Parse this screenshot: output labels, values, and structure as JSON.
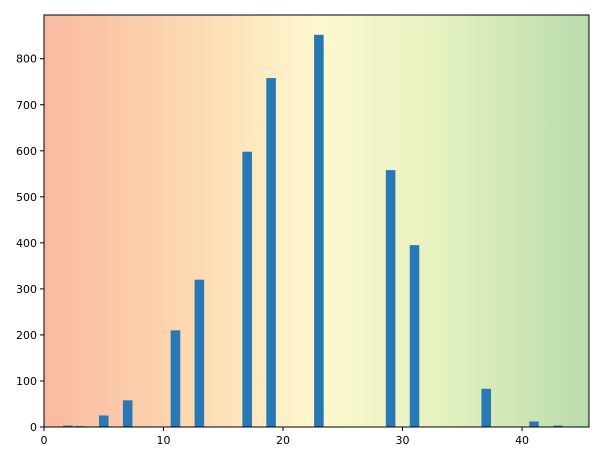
{
  "chart_data": {
    "type": "bar",
    "title": "",
    "xlabel": "",
    "ylabel": "",
    "x": [
      2,
      3,
      5,
      7,
      11,
      13,
      17,
      19,
      23,
      29,
      31,
      37,
      41,
      43
    ],
    "values": [
      3,
      2,
      25,
      58,
      210,
      320,
      598,
      758,
      852,
      558,
      395,
      83,
      12,
      3
    ],
    "bar_width": 0.8,
    "xlim": [
      0,
      45.6
    ],
    "ylim": [
      0,
      895
    ],
    "xticks": [
      0,
      10,
      20,
      30,
      40
    ],
    "xtick_labels": [
      "0",
      "10",
      "20",
      "30",
      "40"
    ],
    "yticks": [
      0,
      100,
      200,
      300,
      400,
      500,
      600,
      700,
      800
    ],
    "ytick_labels": [
      "0",
      "100",
      "200",
      "300",
      "400",
      "500",
      "600",
      "700",
      "800"
    ],
    "grid": false,
    "legend": "none",
    "bar_color": "#2878b5",
    "background_gradient": [
      "#f9b9a1",
      "#fdd9b0",
      "#fef8cf",
      "#e6f2c0",
      "#b8ddab"
    ]
  }
}
